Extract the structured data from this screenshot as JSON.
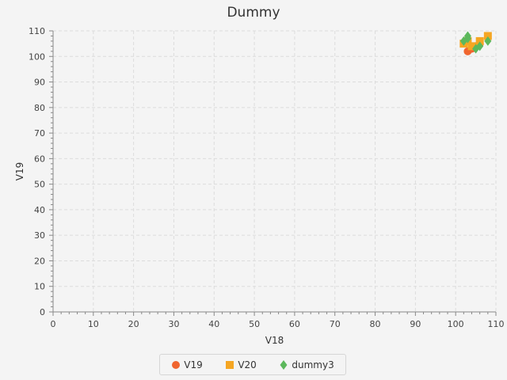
{
  "chart_data": {
    "type": "scatter",
    "title": "Dummy",
    "xlabel": "V18",
    "ylabel": "V19",
    "xlim": [
      0,
      110
    ],
    "ylim": [
      0,
      110
    ],
    "xticks": [
      0,
      10,
      20,
      30,
      40,
      50,
      60,
      70,
      80,
      90,
      100,
      110
    ],
    "yticks": [
      0,
      10,
      20,
      30,
      40,
      50,
      60,
      70,
      80,
      90,
      100,
      110
    ],
    "grid": true,
    "legend_position": "bottom",
    "series": [
      {
        "name": "V19",
        "marker": "circle",
        "color": "#f0652f",
        "points": [
          [
            103,
            102
          ],
          [
            104,
            103
          ],
          [
            105,
            104
          ],
          [
            106,
            105
          ]
        ]
      },
      {
        "name": "V20",
        "marker": "square",
        "color": "#f5a623",
        "points": [
          [
            102,
            105
          ],
          [
            103,
            106
          ],
          [
            104,
            104
          ],
          [
            106,
            106
          ],
          [
            108,
            108
          ]
        ]
      },
      {
        "name": "dummy3",
        "marker": "diamond",
        "color": "#5cb85c",
        "points": [
          [
            102,
            106
          ],
          [
            103,
            107
          ],
          [
            103,
            108
          ],
          [
            105,
            103
          ],
          [
            106,
            104
          ],
          [
            108,
            106
          ]
        ]
      }
    ]
  }
}
